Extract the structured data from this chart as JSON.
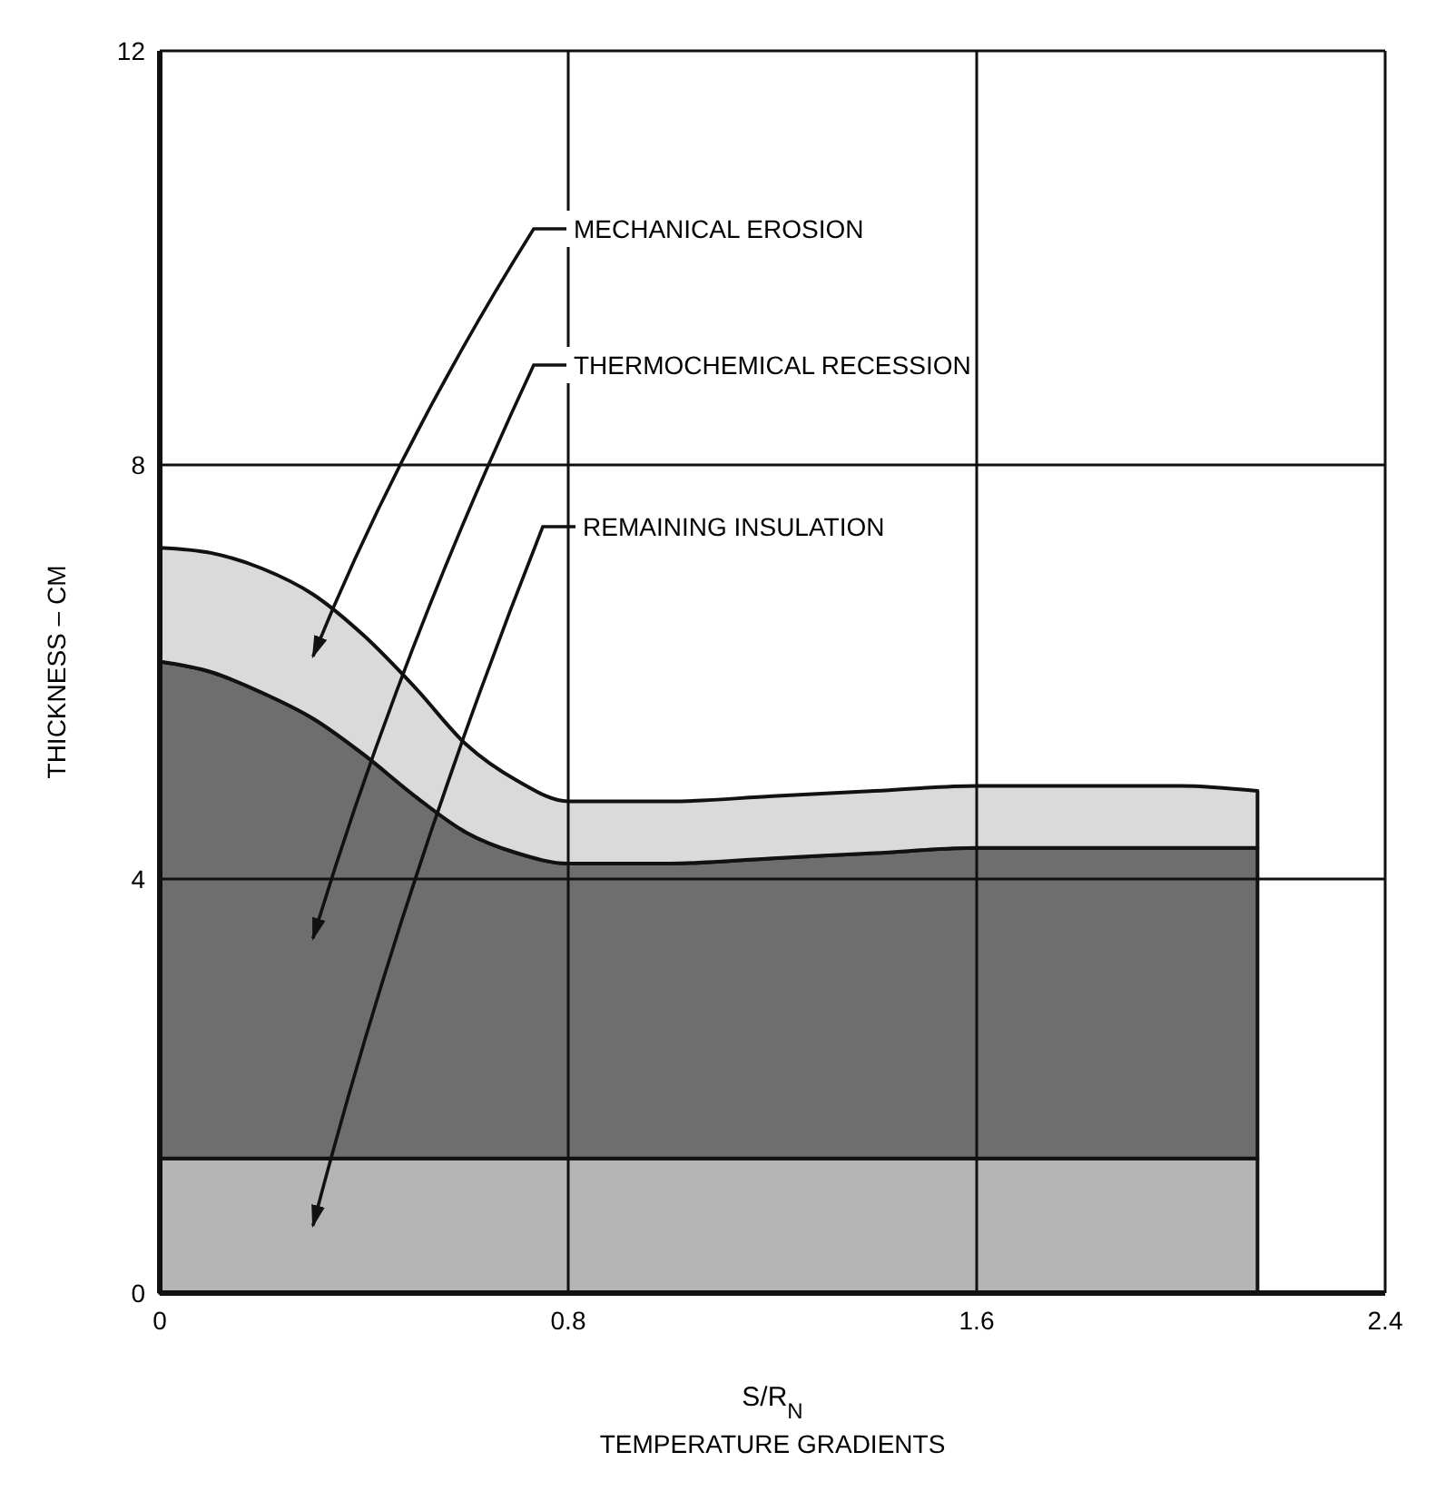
{
  "chart_data": {
    "type": "area",
    "stacked": true,
    "xlabel": "S/R$_{N}$",
    "ylabel": "THICKNESS – CM",
    "annotations": [
      "TEMPERATURE GRADIENTS"
    ],
    "x": [
      0,
      0.1,
      0.2,
      0.3,
      0.4,
      0.5,
      0.6,
      0.7,
      0.8,
      1.0,
      1.2,
      1.4,
      1.6,
      1.8,
      2.0,
      2.15
    ],
    "series": [
      {
        "name": "REMAINING INSULATION",
        "color": "#b4b4b4",
        "values": [
          1.3,
          1.3,
          1.3,
          1.3,
          1.3,
          1.3,
          1.3,
          1.3,
          1.3,
          1.3,
          1.3,
          1.3,
          1.3,
          1.3,
          1.3,
          1.3
        ]
      },
      {
        "name": "THERMOCHEMICAL RECESSION",
        "color": "#6e6e6e",
        "values": [
          4.8,
          4.7,
          4.5,
          4.25,
          3.9,
          3.5,
          3.15,
          2.95,
          2.85,
          2.85,
          2.9,
          2.95,
          3.0,
          3.0,
          3.0,
          3.0
        ]
      },
      {
        "name": "MECHANICAL EROSION",
        "color": "#dadada",
        "values": [
          1.1,
          1.15,
          1.2,
          1.2,
          1.15,
          1.05,
          0.85,
          0.7,
          0.6,
          0.6,
          0.6,
          0.6,
          0.6,
          0.6,
          0.6,
          0.55
        ]
      }
    ],
    "xlim": [
      0,
      2.4
    ],
    "xticks": [
      0,
      0.8,
      1.6,
      2.4
    ],
    "ylim": [
      0,
      12
    ],
    "yticks": [
      0,
      4,
      8,
      12
    ],
    "grid": true
  }
}
